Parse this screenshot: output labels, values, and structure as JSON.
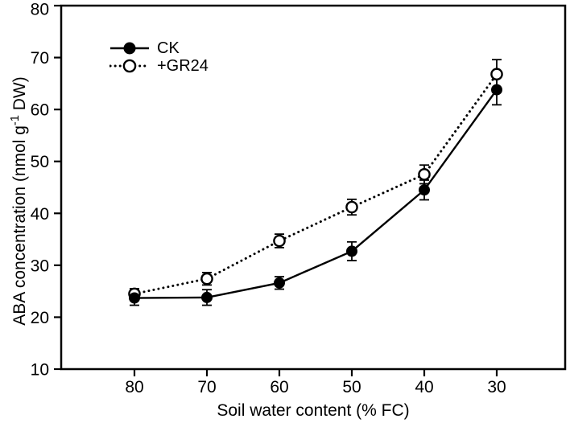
{
  "figure": {
    "background_color": "#ffffff",
    "foreground_color": "#000000"
  },
  "chart_data": {
    "type": "line",
    "title": "",
    "xlabel": "Soil water content (% FC)",
    "ylabel": {
      "main": "ABA concentration (nmol g",
      "sup": "-1",
      "rest": " DW)"
    },
    "x": [
      80,
      70,
      60,
      50,
      40,
      30
    ],
    "x_tick_labels": [
      "80",
      "70",
      "60",
      "50",
      "40",
      "30"
    ],
    "x_axis_reversed": true,
    "ylim": [
      10,
      80
    ],
    "y_ticks": [
      10,
      20,
      30,
      40,
      50,
      60,
      70,
      80
    ],
    "y_tick_labels": [
      "10",
      "20",
      "30",
      "40",
      "50",
      "60",
      "70",
      "80"
    ],
    "grid": false,
    "legend_position": "top-left-inside",
    "series": [
      {
        "name": "CK",
        "line_style": "solid",
        "marker": "filled-circle",
        "color": "#000000",
        "values": [
          23.7,
          23.8,
          26.6,
          32.7,
          44.5,
          63.8
        ],
        "errors": [
          1.4,
          1.5,
          1.2,
          1.8,
          1.9,
          2.9
        ]
      },
      {
        "name": "+GR24",
        "line_style": "dotted",
        "marker": "open-circle",
        "color": "#000000",
        "values": [
          24.5,
          27.4,
          34.7,
          41.2,
          47.5,
          66.8
        ],
        "errors": [
          1.0,
          1.2,
          1.3,
          1.5,
          1.8,
          2.8
        ]
      }
    ]
  }
}
